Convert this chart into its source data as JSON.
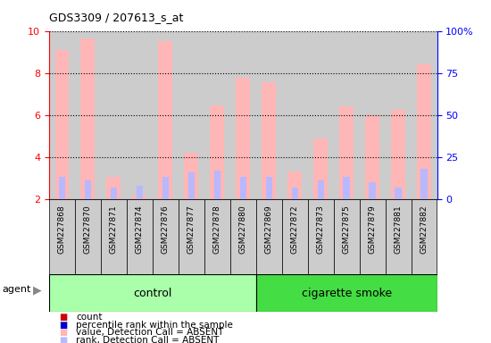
{
  "title": "GDS3309 / 207613_s_at",
  "samples": [
    "GSM227868",
    "GSM227870",
    "GSM227871",
    "GSM227874",
    "GSM227876",
    "GSM227877",
    "GSM227878",
    "GSM227880",
    "GSM227869",
    "GSM227872",
    "GSM227873",
    "GSM227875",
    "GSM227879",
    "GSM227881",
    "GSM227882"
  ],
  "values": [
    9.1,
    9.65,
    3.05,
    2.15,
    9.5,
    4.2,
    6.45,
    7.75,
    7.55,
    3.3,
    4.9,
    6.4,
    6.0,
    6.25,
    8.4
  ],
  "ranks_pct": [
    13,
    11,
    7,
    8,
    13,
    16,
    17,
    13,
    13,
    7,
    11,
    13,
    10,
    7,
    18
  ],
  "groups": [
    "control",
    "control",
    "control",
    "control",
    "control",
    "control",
    "control",
    "control",
    "cigarette smoke",
    "cigarette smoke",
    "cigarette smoke",
    "cigarette smoke",
    "cigarette smoke",
    "cigarette smoke",
    "cigarette smoke"
  ],
  "control_color": "#aaffaa",
  "smoke_color": "#44dd44",
  "bar_color_absent": "#ffb6b6",
  "rank_color_absent": "#b8b8ff",
  "bar_color_present": "#cc0000",
  "rank_color_present": "#0000cc",
  "ylim_left": [
    2,
    10
  ],
  "ylim_right": [
    0,
    100
  ],
  "yticks_left": [
    2,
    4,
    6,
    8,
    10
  ],
  "yticks_right": [
    0,
    25,
    50,
    75,
    100
  ],
  "ytick_labels_right": [
    "0",
    "25",
    "50",
    "75",
    "100%"
  ],
  "cell_bg_color": "#cccccc",
  "plot_bg": "#ffffff",
  "legend_items": [
    {
      "color": "#cc0000",
      "label": "count"
    },
    {
      "color": "#0000cc",
      "label": "percentile rank within the sample"
    },
    {
      "color": "#ffb6b6",
      "label": "value, Detection Call = ABSENT"
    },
    {
      "color": "#b8b8ff",
      "label": "rank, Detection Call = ABSENT"
    }
  ]
}
